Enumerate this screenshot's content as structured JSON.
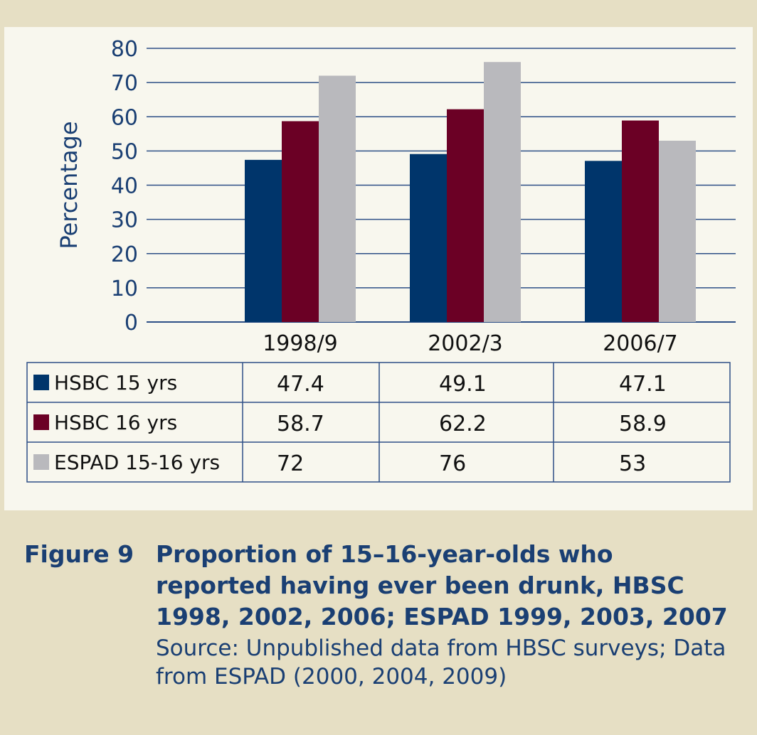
{
  "figure": {
    "label": "Figure 9",
    "title": "Proportion of 15–16-year-olds who reported having ever been drunk, HBSC 1998, 2002, 2006; ESPAD 1999, 2003, 2007",
    "source": "Source: Unpublished data from HBSC surveys; Data from ESPAD (2000, 2004, 2009)"
  },
  "chart_data": {
    "type": "bar",
    "categories": [
      "1998/9",
      "2002/3",
      "2006/7"
    ],
    "series": [
      {
        "name": "HSBC 15 yrs",
        "color": "#00356b",
        "values": [
          47.4,
          49.1,
          47.1
        ],
        "labels": [
          "47.4",
          "49.1",
          "47.1"
        ]
      },
      {
        "name": "HSBC 16 yrs",
        "color": "#6b0025",
        "values": [
          58.7,
          62.2,
          58.9
        ],
        "labels": [
          "58.7",
          "62.2",
          "58.9"
        ]
      },
      {
        "name": "ESPAD 15-16 yrs",
        "color": "#b9b9bd",
        "values": [
          72,
          76,
          53
        ],
        "labels": [
          "72",
          "76",
          "53"
        ]
      }
    ],
    "ylabel": "Percentage",
    "xlabel": "",
    "ylim": [
      0,
      80
    ],
    "yticks": [
      0,
      10,
      20,
      30,
      40,
      50,
      60,
      70,
      80
    ],
    "grid": true,
    "legend": "data-table-below"
  },
  "colors": {
    "text": "#1a3f73",
    "grid": "#2d4f86",
    "background": "#e6dfc4",
    "panel": "#f8f7ee"
  }
}
